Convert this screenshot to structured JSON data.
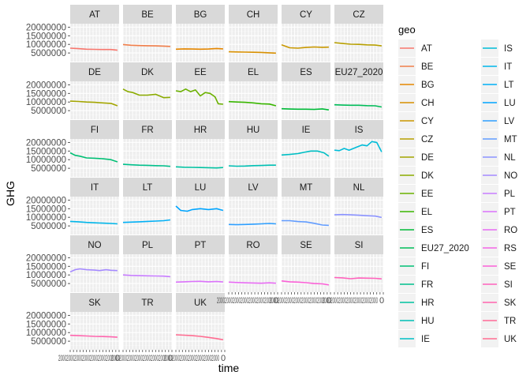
{
  "chart_data": {
    "type": "line",
    "layout": "facet_wrap",
    "xlabel": "time",
    "ylabel": "GHG",
    "ylim": [
      0,
      22000000
    ],
    "xlim": [
      1990,
      2020
    ],
    "y_ticks": [
      "20000000",
      "15000000",
      "10000000",
      "5000000"
    ],
    "y_tick_values": [
      20000000,
      15000000,
      10000000,
      5000000
    ],
    "x_tick_labels_overlapping": "2000200020002000200020002000",
    "x_tick_labels_tail": "0",
    "grid": true,
    "legend": {
      "title": "geo",
      "placement": "right",
      "columns": 2,
      "items": [
        {
          "name": "AT",
          "color": "#F8766D"
        },
        {
          "name": "BE",
          "color": "#F07E4A"
        },
        {
          "name": "BG",
          "color": "#E58700"
        },
        {
          "name": "CH",
          "color": "#D89000"
        },
        {
          "name": "CY",
          "color": "#C99800"
        },
        {
          "name": "CZ",
          "color": "#B79F00"
        },
        {
          "name": "DE",
          "color": "#A3A500"
        },
        {
          "name": "DK",
          "color": "#8BAB00"
        },
        {
          "name": "EE",
          "color": "#6BB100"
        },
        {
          "name": "EL",
          "color": "#39B600"
        },
        {
          "name": "ES",
          "color": "#00BA38"
        },
        {
          "name": "EU27_2020",
          "color": "#00BC59"
        },
        {
          "name": "FI",
          "color": "#00BF74"
        },
        {
          "name": "FR",
          "color": "#00C08B"
        },
        {
          "name": "HR",
          "color": "#00C1A0"
        },
        {
          "name": "HU",
          "color": "#00C0B4"
        },
        {
          "name": "IE",
          "color": "#00BFC4"
        },
        {
          "name": "IS",
          "color": "#00BCD8"
        },
        {
          "name": "IT",
          "color": "#00B6E9"
        },
        {
          "name": "LT",
          "color": "#00B0F6"
        },
        {
          "name": "LU",
          "color": "#00A5FF"
        },
        {
          "name": "LV",
          "color": "#2E9FFF"
        },
        {
          "name": "MT",
          "color": "#619CFF"
        },
        {
          "name": "NL",
          "color": "#8B93FF"
        },
        {
          "name": "NO",
          "color": "#A58AFF"
        },
        {
          "name": "PL",
          "color": "#C77CFF"
        },
        {
          "name": "PT",
          "color": "#DB72FB"
        },
        {
          "name": "RO",
          "color": "#E76BF3"
        },
        {
          "name": "RS",
          "color": "#F365E6"
        },
        {
          "name": "SE",
          "color": "#FB61D7"
        },
        {
          "name": "SI",
          "color": "#FF62BC"
        },
        {
          "name": "SK",
          "color": "#FF65AE"
        },
        {
          "name": "TR",
          "color": "#FF6A98"
        },
        {
          "name": "UK",
          "color": "#FF6C91"
        }
      ]
    },
    "panels": [
      {
        "name": "AT",
        "x": [
          1990,
          1995,
          2000,
          2005,
          2010,
          2015,
          2019
        ],
        "y": [
          7800000,
          7500000,
          7200000,
          7100000,
          7000000,
          7000000,
          6600000
        ]
      },
      {
        "name": "BE",
        "x": [
          1990,
          1995,
          2000,
          2005,
          2010,
          2015,
          2019
        ],
        "y": [
          9900000,
          9500000,
          9300000,
          9200000,
          9100000,
          9000000,
          8800000
        ]
      },
      {
        "name": "BG",
        "x": [
          1990,
          1995,
          2000,
          2005,
          2010,
          2015,
          2019
        ],
        "y": [
          7200000,
          7400000,
          7300000,
          7200000,
          7300000,
          7600000,
          7400000
        ]
      },
      {
        "name": "CH",
        "x": [
          1990,
          1995,
          2000,
          2005,
          2010,
          2015,
          2019
        ],
        "y": [
          5700000,
          5600000,
          5500000,
          5400000,
          5300000,
          5100000,
          4900000
        ]
      },
      {
        "name": "CY",
        "x": [
          1990,
          1995,
          2000,
          2005,
          2010,
          2015,
          2019
        ],
        "y": [
          9700000,
          8000000,
          7800000,
          8200000,
          8500000,
          8300000,
          8400000
        ]
      },
      {
        "name": "CZ",
        "x": [
          1990,
          1995,
          2000,
          2005,
          2010,
          2015,
          2019
        ],
        "y": [
          11000000,
          10500000,
          10100000,
          10000000,
          9700000,
          9600000,
          9100000
        ]
      },
      {
        "name": "DE",
        "x": [
          1990,
          1995,
          2000,
          2005,
          2010,
          2015,
          2019
        ],
        "y": [
          10500000,
          10300000,
          10000000,
          9800000,
          9500000,
          9200000,
          7800000
        ]
      },
      {
        "name": "DK",
        "x": [
          1990,
          1993,
          1996,
          2000,
          2005,
          2010,
          2015,
          2019
        ],
        "y": [
          17500000,
          16000000,
          15500000,
          14000000,
          14000000,
          14500000,
          12500000,
          12700000
        ]
      },
      {
        "name": "EE",
        "x": [
          1990,
          1993,
          1996,
          1999,
          2002,
          2005,
          2008,
          2011,
          2014,
          2016,
          2019
        ],
        "y": [
          16500000,
          16000000,
          17500000,
          16000000,
          17000000,
          13500000,
          15500000,
          15000000,
          13000000,
          9000000,
          8700000
        ]
      },
      {
        "name": "EL",
        "x": [
          1990,
          1995,
          2000,
          2005,
          2010,
          2015,
          2019
        ],
        "y": [
          10200000,
          10000000,
          9800000,
          9500000,
          9000000,
          8800000,
          7800000
        ]
      },
      {
        "name": "ES",
        "x": [
          1990,
          1995,
          2000,
          2005,
          2010,
          2015,
          2019
        ],
        "y": [
          6100000,
          5900000,
          5800000,
          5800000,
          5700000,
          6000000,
          5400000
        ]
      },
      {
        "name": "EU27_2020",
        "x": [
          1990,
          1995,
          2000,
          2005,
          2010,
          2015,
          2019
        ],
        "y": [
          8400000,
          8200000,
          8100000,
          8100000,
          7900000,
          7800000,
          7100000
        ]
      },
      {
        "name": "FI",
        "x": [
          1990,
          1993,
          1996,
          2000,
          2005,
          2010,
          2015,
          2019
        ],
        "y": [
          14000000,
          12500000,
          12000000,
          11000000,
          10800000,
          10500000,
          10000000,
          8700000
        ]
      },
      {
        "name": "FR",
        "x": [
          1990,
          1995,
          2000,
          2005,
          2010,
          2015,
          2019
        ],
        "y": [
          7300000,
          7000000,
          6800000,
          6700000,
          6500000,
          6400000,
          6100000
        ]
      },
      {
        "name": "HR",
        "x": [
          1990,
          1995,
          2000,
          2005,
          2010,
          2015,
          2019
        ],
        "y": [
          5800000,
          5600000,
          5500000,
          5400000,
          5300000,
          5200000,
          5400000
        ]
      },
      {
        "name": "HU",
        "x": [
          1990,
          1995,
          2000,
          2005,
          2010,
          2015,
          2019
        ],
        "y": [
          6400000,
          6200000,
          6300000,
          6500000,
          6600000,
          6800000,
          6800000
        ]
      },
      {
        "name": "IE",
        "x": [
          1990,
          1995,
          2000,
          2005,
          2008,
          2012,
          2016,
          2019
        ],
        "y": [
          12700000,
          13000000,
          13500000,
          14500000,
          15000000,
          15000000,
          14000000,
          12000000
        ]
      },
      {
        "name": "IS",
        "x": [
          1990,
          1993,
          1996,
          1999,
          2003,
          2007,
          2010,
          2013,
          2016,
          2019
        ],
        "y": [
          15500000,
          15200000,
          16500000,
          15500000,
          17000000,
          18500000,
          18000000,
          20500000,
          20000000,
          14500000
        ]
      },
      {
        "name": "IT",
        "x": [
          1990,
          1995,
          2000,
          2005,
          2010,
          2015,
          2019
        ],
        "y": [
          7600000,
          7400000,
          7000000,
          6800000,
          6600000,
          6400000,
          6200000
        ]
      },
      {
        "name": "LT",
        "x": [
          1990,
          1995,
          2000,
          2005,
          2010,
          2015,
          2019
        ],
        "y": [
          7000000,
          7200000,
          7400000,
          7600000,
          7800000,
          8000000,
          8500000
        ]
      },
      {
        "name": "LU",
        "x": [
          1990,
          1993,
          1997,
          2000,
          2005,
          2010,
          2015,
          2019
        ],
        "y": [
          16500000,
          14000000,
          13500000,
          14500000,
          15000000,
          14500000,
          15000000,
          14000000
        ]
      },
      {
        "name": "LV",
        "x": [
          1990,
          1995,
          2000,
          2005,
          2010,
          2015,
          2019
        ],
        "y": [
          5800000,
          5700000,
          5800000,
          6000000,
          6200000,
          6400000,
          6200000
        ]
      },
      {
        "name": "MT",
        "x": [
          1990,
          1995,
          2000,
          2005,
          2010,
          2015,
          2019
        ],
        "y": [
          8000000,
          8000000,
          7500000,
          7300000,
          6500000,
          5500000,
          5300000
        ]
      },
      {
        "name": "NL",
        "x": [
          1990,
          1995,
          2000,
          2005,
          2010,
          2015,
          2019
        ],
        "y": [
          11400000,
          11600000,
          11400000,
          11200000,
          10900000,
          10700000,
          9900000
        ]
      },
      {
        "name": "NO",
        "x": [
          1990,
          1993,
          1996,
          2000,
          2005,
          2008,
          2012,
          2015,
          2019
        ],
        "y": [
          11800000,
          13000000,
          13500000,
          13000000,
          12800000,
          12500000,
          13000000,
          12700000,
          12500000
        ]
      },
      {
        "name": "PL",
        "x": [
          1990,
          1995,
          2000,
          2005,
          2010,
          2015,
          2019
        ],
        "y": [
          10000000,
          9700000,
          9600000,
          9500000,
          9400000,
          9300000,
          9000000
        ]
      },
      {
        "name": "PT",
        "x": [
          1990,
          1995,
          2000,
          2005,
          2010,
          2015,
          2019
        ],
        "y": [
          5800000,
          6000000,
          6200000,
          6300000,
          6000000,
          6200000,
          5900000
        ]
      },
      {
        "name": "RO",
        "x": [
          1990,
          1995,
          2000,
          2005,
          2010,
          2015,
          2019
        ],
        "y": [
          5800000,
          5600000,
          5400000,
          5300000,
          5200000,
          5400000,
          5200000
        ]
      },
      {
        "name": "SE",
        "x": [
          1990,
          1995,
          2000,
          2005,
          2010,
          2015,
          2019
        ],
        "y": [
          6500000,
          6000000,
          5800000,
          5500000,
          5000000,
          4800000,
          4200000
        ]
      },
      {
        "name": "SI",
        "x": [
          1990,
          1995,
          2000,
          2005,
          2010,
          2015,
          2019
        ],
        "y": [
          8500000,
          8300000,
          7800000,
          8200000,
          8100000,
          8000000,
          7700000
        ]
      },
      {
        "name": "SK",
        "x": [
          1990,
          1995,
          2000,
          2005,
          2010,
          2015,
          2019
        ],
        "y": [
          8400000,
          8200000,
          8000000,
          7800000,
          7700000,
          7500000,
          7300000
        ]
      },
      {
        "name": "TR",
        "x": [],
        "y": []
      },
      {
        "name": "UK",
        "x": [
          1990,
          1995,
          2000,
          2005,
          2010,
          2015,
          2019
        ],
        "y": [
          8700000,
          8500000,
          8200000,
          7800000,
          7200000,
          6500000,
          5800000
        ]
      }
    ]
  }
}
